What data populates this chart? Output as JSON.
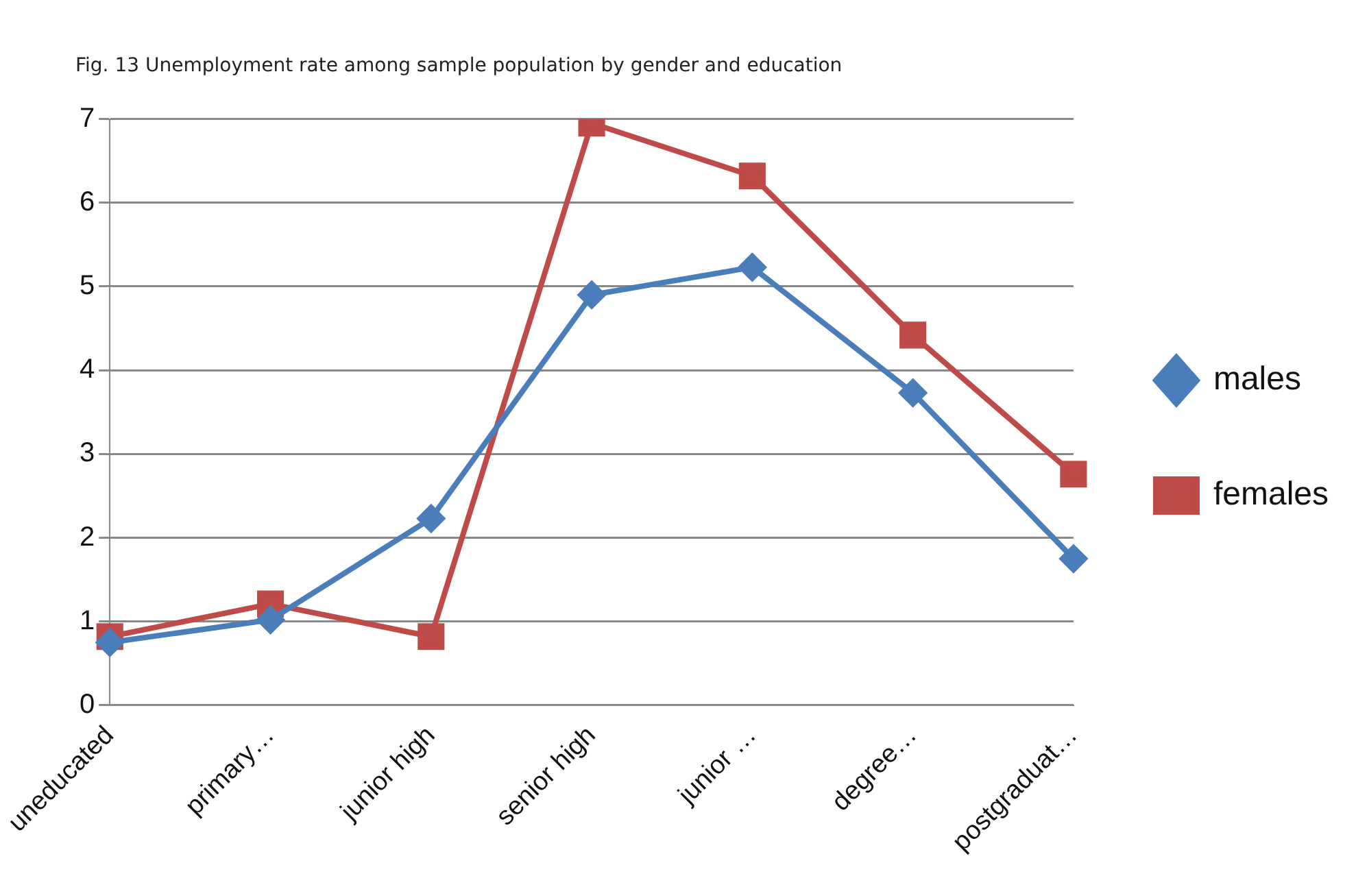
{
  "chart_data": {
    "type": "line",
    "title": "Fig. 13 Unemployment rate among sample population by gender and education",
    "categories": [
      "uneducated",
      "primary…",
      "junior high",
      "senior high",
      "junior …",
      "degree…",
      "postgraduat…"
    ],
    "series": [
      {
        "name": "males",
        "color": "#4a7ebb",
        "marker": "diamond",
        "values": [
          0.75,
          1.02,
          2.23,
          4.9,
          5.23,
          3.73,
          1.75
        ]
      },
      {
        "name": "females",
        "color": "#be4b48",
        "marker": "square",
        "values": [
          0.82,
          1.21,
          0.82,
          6.95,
          6.32,
          4.42,
          2.76
        ]
      }
    ],
    "ylim": [
      0,
      7
    ],
    "yticks": [
      0,
      1,
      2,
      3,
      4,
      5,
      6,
      7
    ],
    "grid": "y",
    "legend": "right",
    "line_style": "solid"
  }
}
